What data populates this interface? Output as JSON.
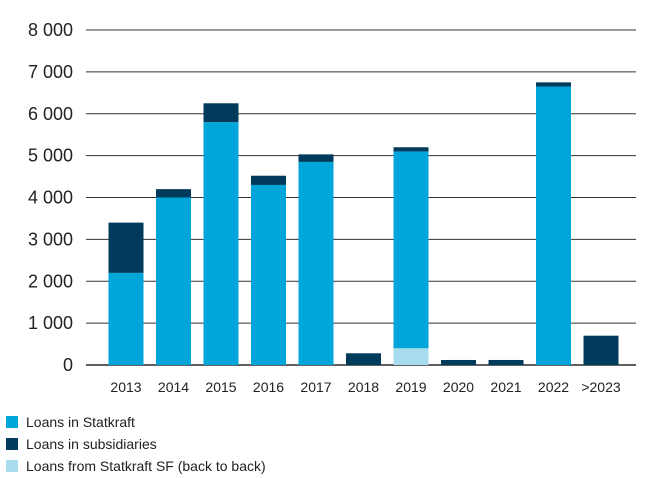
{
  "chart_data": {
    "type": "bar",
    "stacked": true,
    "categories": [
      "2013",
      "2014",
      "2015",
      "2016",
      "2017",
      "2018",
      "2019",
      "2020",
      "2021",
      "2022",
      ">2023"
    ],
    "series": [
      {
        "name": "Loans in Statkraft",
        "color": "#00a5d9",
        "values": [
          2200,
          4000,
          5800,
          4300,
          4850,
          0,
          4700,
          0,
          0,
          6650,
          0
        ]
      },
      {
        "name": "Loans in subsidiaries",
        "color": "#003b5c",
        "values": [
          1200,
          200,
          450,
          220,
          180,
          280,
          100,
          120,
          120,
          100,
          700
        ]
      },
      {
        "name": "Loans from Statkraft SF (back to back)",
        "color": "#a8dcef",
        "values": [
          0,
          0,
          0,
          0,
          0,
          0,
          400,
          0,
          0,
          0,
          0
        ]
      }
    ],
    "stack_order": [
      2,
      0,
      1
    ],
    "ylim": [
      0,
      8000
    ],
    "yticks": [
      0,
      1000,
      2000,
      3000,
      4000,
      5000,
      6000,
      7000,
      8000
    ],
    "ytick_labels": [
      "0",
      "1 000",
      "2 000",
      "3 000",
      "4 000",
      "5 000",
      "6 000",
      "7 000",
      "8 000"
    ],
    "grid": true,
    "legend_position": "bottom-left"
  }
}
